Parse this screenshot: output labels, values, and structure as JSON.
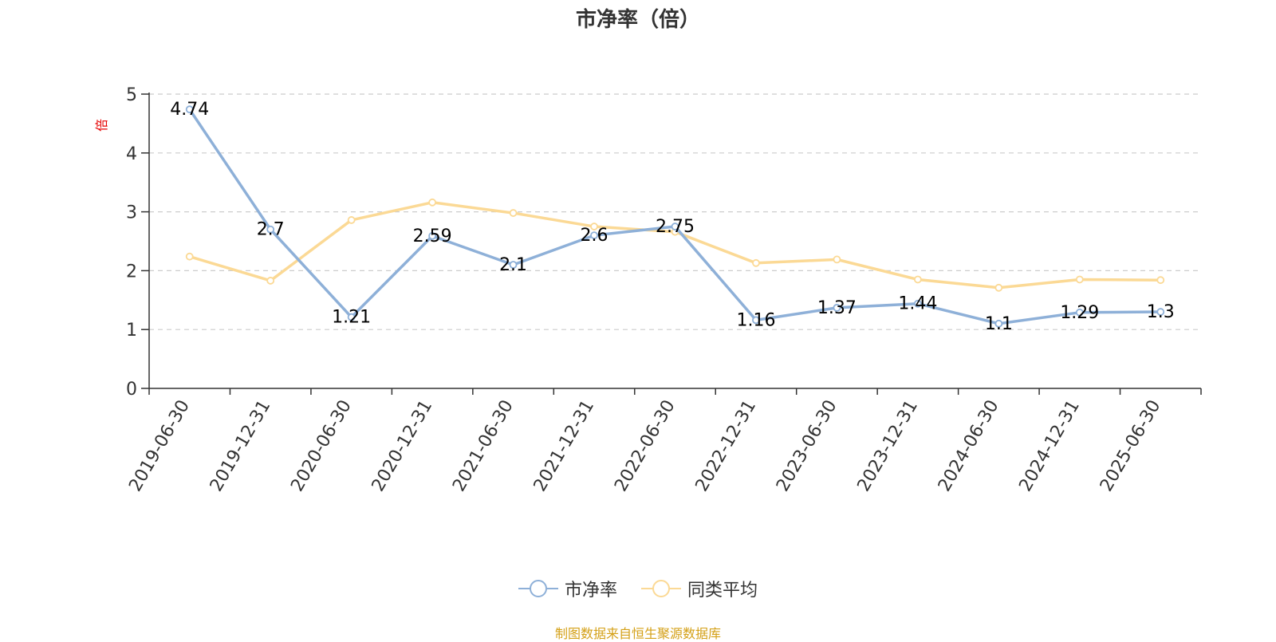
{
  "chart_data": {
    "type": "line",
    "title": "市净率（倍）",
    "ylabel": "倍",
    "xlabel": "",
    "ylim": [
      0,
      5
    ],
    "yticks": [
      0,
      1,
      2,
      3,
      4,
      5
    ],
    "grid": true,
    "legend_position": "bottom-center",
    "categories": [
      "2019-06-30",
      "2019-12-31",
      "2020-06-30",
      "2020-12-31",
      "2021-06-30",
      "2021-12-31",
      "2022-06-30",
      "2022-12-31",
      "2023-06-30",
      "2023-12-31",
      "2024-06-30",
      "2024-12-31",
      "2025-06-30"
    ],
    "series": [
      {
        "name": "市净率",
        "color": "#8eb0d8",
        "values": [
          4.74,
          2.7,
          1.21,
          2.59,
          2.1,
          2.6,
          2.75,
          1.16,
          1.37,
          1.44,
          1.1,
          1.29,
          1.3
        ],
        "labels": [
          "4.74",
          "2.7",
          "1.21",
          "2.59",
          "2.1",
          "2.6",
          "2.75",
          "1.16",
          "1.37",
          "1.44",
          "1.1",
          "1.29",
          "1.3"
        ]
      },
      {
        "name": "同类平均",
        "color": "#fbd995",
        "values": [
          2.24,
          1.83,
          2.86,
          3.16,
          2.98,
          2.75,
          2.66,
          2.13,
          2.19,
          1.85,
          1.71,
          1.85,
          1.84
        ]
      }
    ]
  },
  "source_note": "制图数据来自恒生聚源数据库",
  "colors": {
    "axis": "#333333",
    "grid": "#cccccc",
    "ylabel": "#e60000",
    "source": "#d4a017"
  }
}
